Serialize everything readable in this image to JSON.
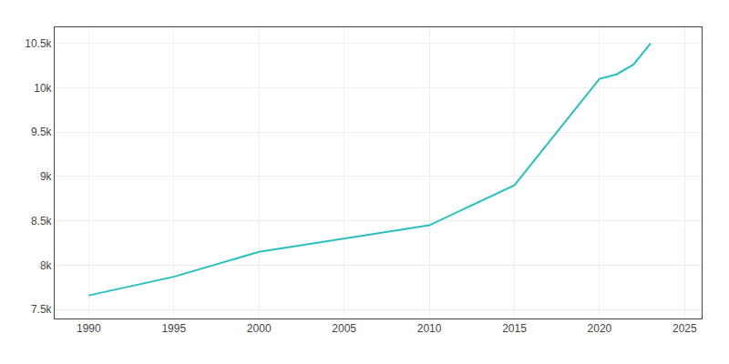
{
  "chart_data": {
    "type": "line",
    "x": [
      1990,
      1995,
      2000,
      2005,
      2010,
      2015,
      2020,
      2021,
      2022,
      2023
    ],
    "values": [
      7660,
      7870,
      8150,
      8300,
      8450,
      8900,
      10100,
      10150,
      10260,
      10500
    ],
    "color": "#2abfbf",
    "xlim": [
      1988,
      2026
    ],
    "ylim": [
      7400,
      10680
    ],
    "xticks": [
      1990,
      1995,
      2000,
      2005,
      2010,
      2015,
      2020,
      2025
    ],
    "yticks": [
      {
        "value": 7500,
        "label": "7.5k"
      },
      {
        "value": 8000,
        "label": "8k"
      },
      {
        "value": 8500,
        "label": "8.5k"
      },
      {
        "value": 9000,
        "label": "9k"
      },
      {
        "value": 9500,
        "label": "9.5k"
      },
      {
        "value": 10000,
        "label": "10k"
      },
      {
        "value": 10500,
        "label": "10.5k"
      }
    ],
    "grid": true
  }
}
